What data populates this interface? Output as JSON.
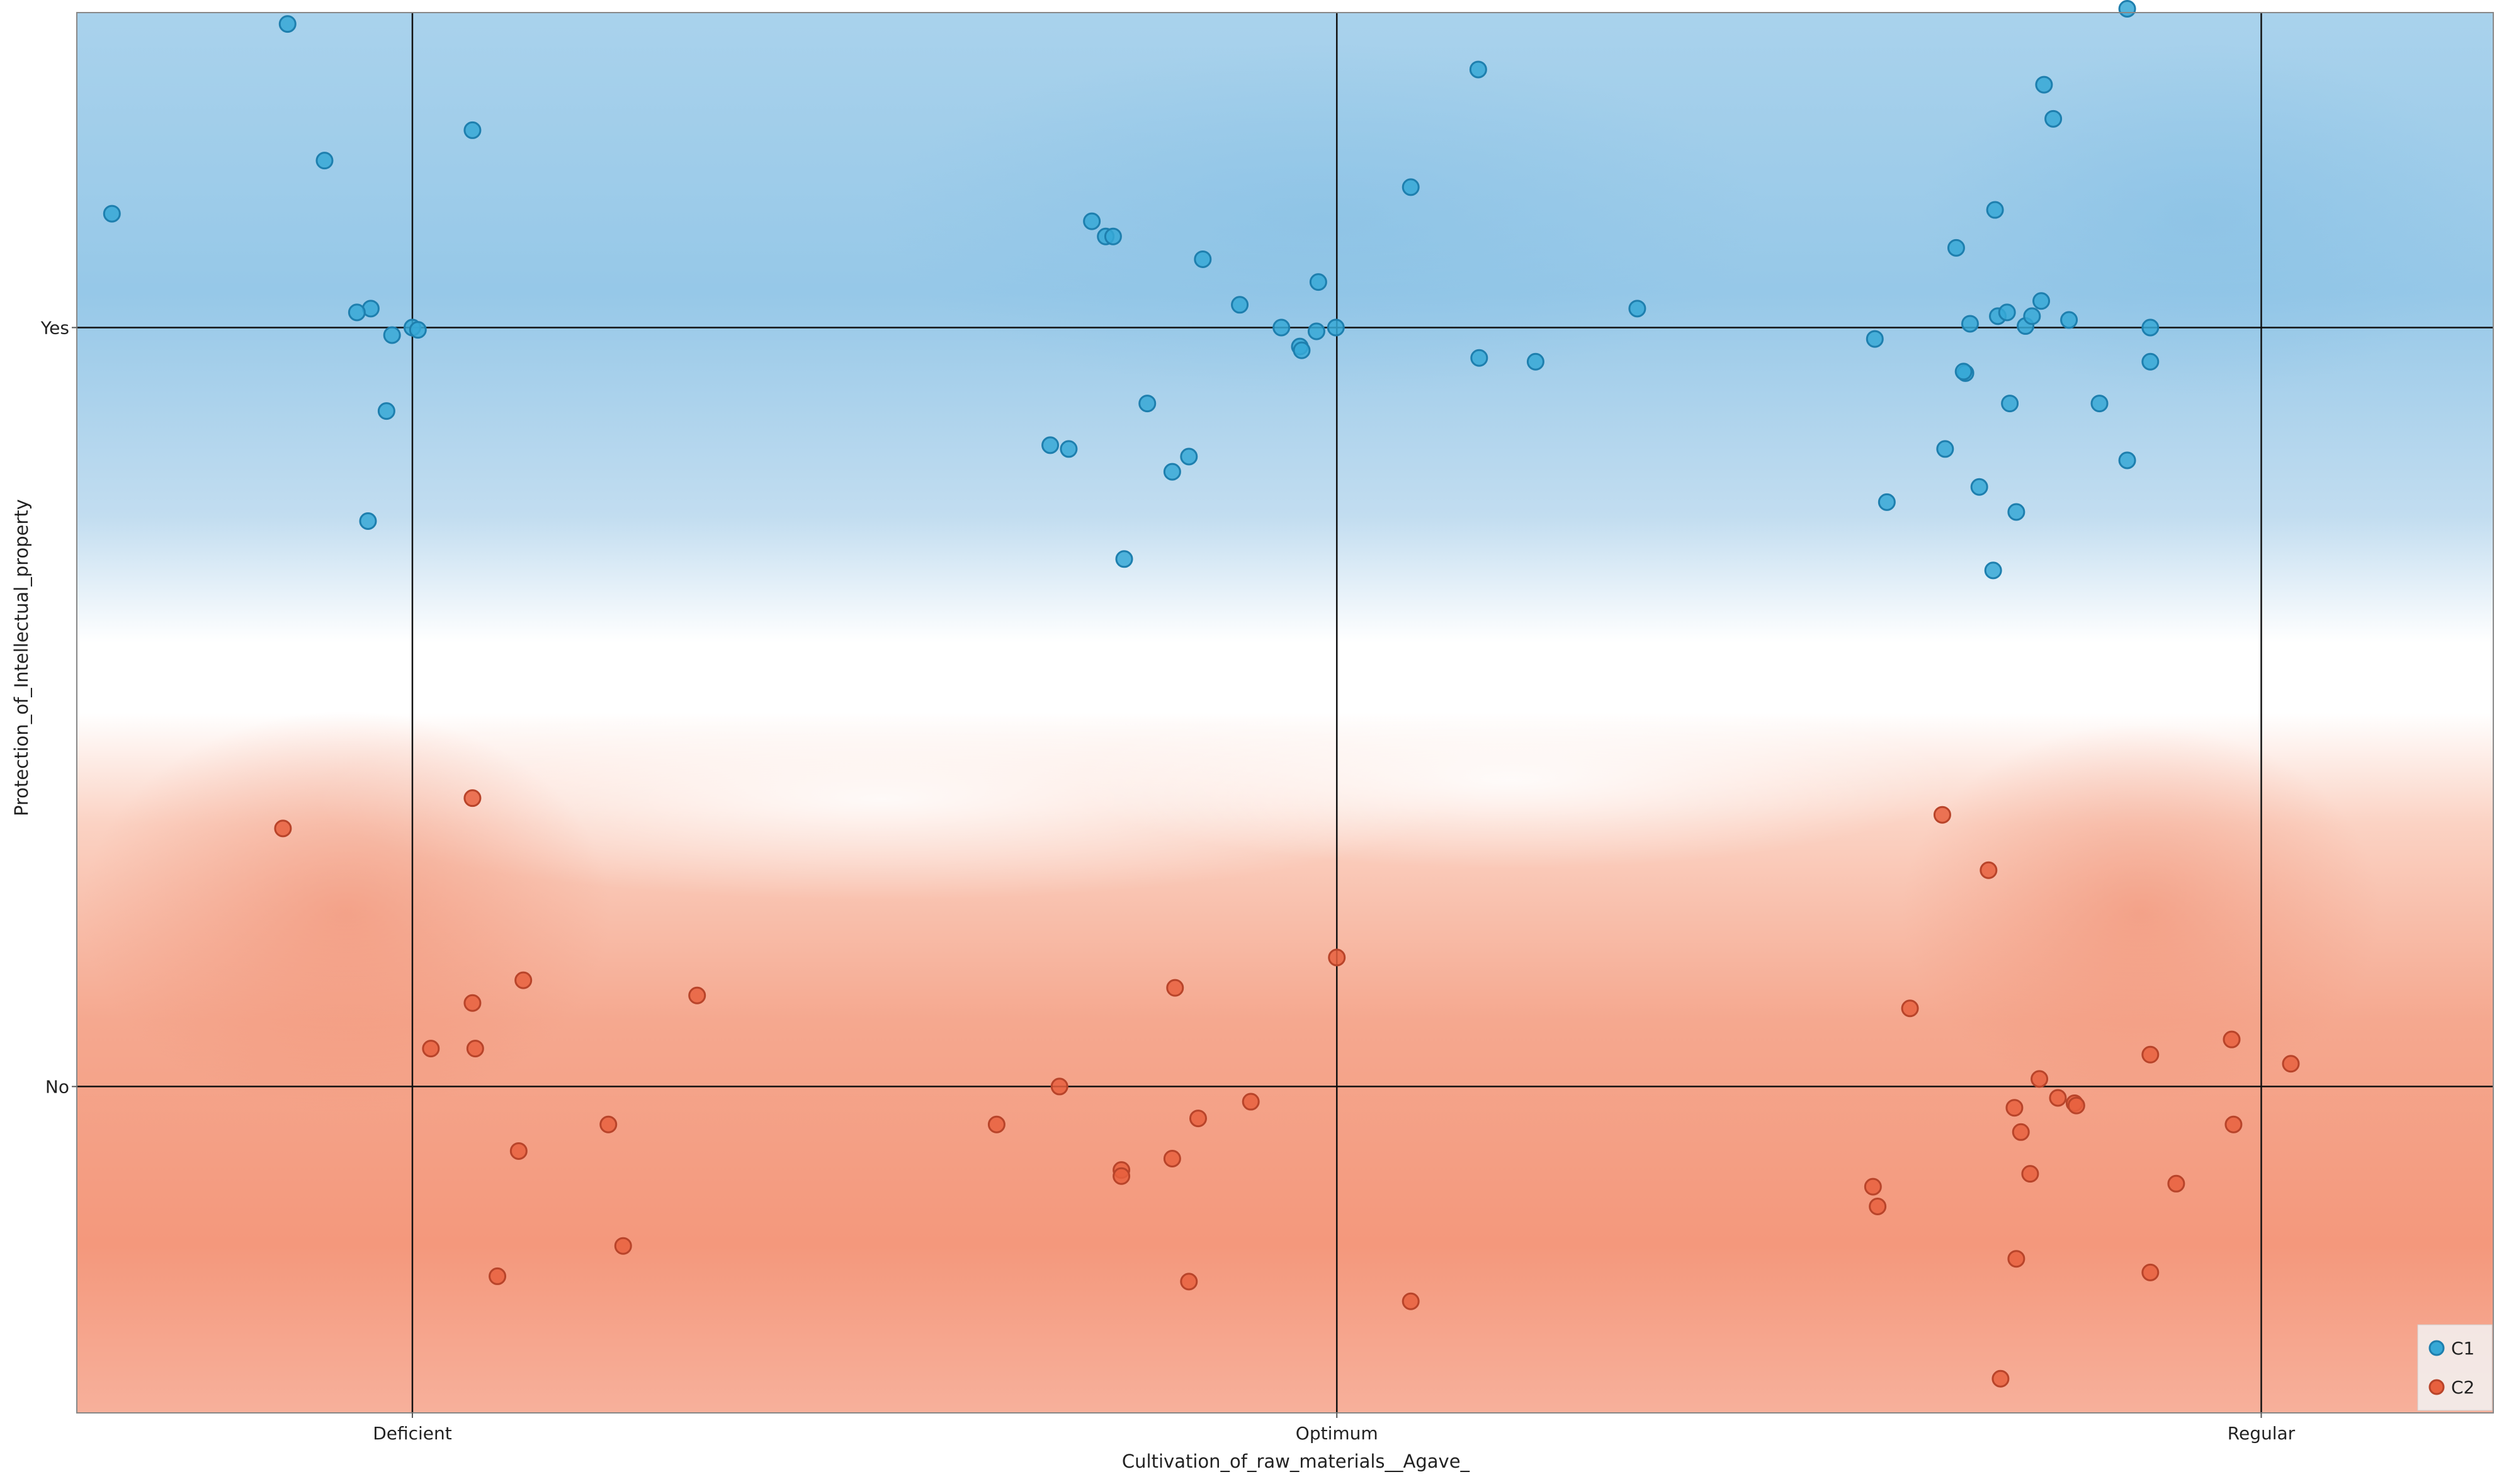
{
  "chart_data": {
    "type": "scatter",
    "title": "",
    "xlabel": "Cultivation_of_raw_materials__Agave_",
    "ylabel": "Protection_of_Intellectual_property",
    "x_categories": [
      "Deficient",
      "Optimum",
      "Regular"
    ],
    "y_categories": [
      "No",
      "Yes"
    ],
    "xlim": [
      -0.363,
      2.251
    ],
    "ylim": [
      -0.43,
      1.415
    ],
    "jitter_note": "categorical axes with jitter; values in category-index units (Deficient=0, Optimum=1, Regular=2; No=0, Yes=1)",
    "grid": true,
    "legend_position": "bottom-right",
    "background": "class probability map: blue (C1) top, red (C2) bottom",
    "colors": {
      "C1": "#36a8d6",
      "C2": "#e8603e",
      "C1_area": "#8fc5e6",
      "C2_area": "#f29379"
    },
    "series": [
      {
        "name": "C1",
        "points": [
          [
            -0.325,
            1.15
          ],
          [
            -0.135,
            1.4
          ],
          [
            -0.095,
            1.22
          ],
          [
            -0.045,
            1.025
          ],
          [
            -0.022,
            0.99
          ],
          [
            -0.028,
            0.89
          ],
          [
            -0.048,
            0.745
          ],
          [
            0.0,
            1.0
          ],
          [
            0.006,
            0.997
          ],
          [
            0.065,
            1.26
          ],
          [
            -0.06,
            1.02
          ],
          [
            0.735,
            1.14
          ],
          [
            0.75,
            1.12
          ],
          [
            0.758,
            1.12
          ],
          [
            0.855,
            1.09
          ],
          [
            0.795,
            0.9
          ],
          [
            0.84,
            0.83
          ],
          [
            0.822,
            0.81
          ],
          [
            0.69,
            0.845
          ],
          [
            0.71,
            0.84
          ],
          [
            0.77,
            0.695
          ],
          [
            0.895,
            1.03
          ],
          [
            0.94,
            1.0
          ],
          [
            0.96,
            0.975
          ],
          [
            0.962,
            0.97
          ],
          [
            0.978,
            0.995
          ],
          [
            0.98,
            1.06
          ],
          [
            0.999,
            1.0
          ],
          [
            1.08,
            1.185
          ],
          [
            1.153,
            1.34
          ],
          [
            1.154,
            0.96
          ],
          [
            1.215,
            0.955
          ],
          [
            1.325,
            1.025
          ],
          [
            1.582,
            0.985
          ],
          [
            1.595,
            0.77
          ],
          [
            1.658,
            0.84
          ],
          [
            1.67,
            1.105
          ],
          [
            1.68,
            0.94
          ],
          [
            1.678,
            0.942
          ],
          [
            1.685,
            1.005
          ],
          [
            1.695,
            0.79
          ],
          [
            1.715,
            1.015
          ],
          [
            1.71,
            0.68
          ],
          [
            1.712,
            1.155
          ],
          [
            1.725,
            1.02
          ],
          [
            1.728,
            0.9
          ],
          [
            1.735,
            0.757
          ],
          [
            1.745,
            1.002
          ],
          [
            1.752,
            1.015
          ],
          [
            1.762,
            1.035
          ],
          [
            1.765,
            1.32
          ],
          [
            1.775,
            1.275
          ],
          [
            1.792,
            1.01
          ],
          [
            1.825,
            0.9
          ],
          [
            1.855,
            1.42
          ],
          [
            1.855,
            0.825
          ],
          [
            1.88,
            1.0
          ],
          [
            1.88,
            0.955
          ]
        ]
      },
      {
        "name": "C2",
        "points": [
          [
            -0.14,
            0.34
          ],
          [
            0.065,
            0.38
          ],
          [
            0.12,
            0.14
          ],
          [
            0.065,
            0.11
          ],
          [
            0.02,
            0.05
          ],
          [
            0.068,
            0.05
          ],
          [
            0.115,
            -0.085
          ],
          [
            0.212,
            -0.05
          ],
          [
            0.228,
            -0.21
          ],
          [
            0.092,
            -0.25
          ],
          [
            0.308,
            0.12
          ],
          [
            0.632,
            -0.05
          ],
          [
            0.7,
            0.0
          ],
          [
            0.767,
            -0.11
          ],
          [
            0.767,
            -0.118
          ],
          [
            0.822,
            -0.095
          ],
          [
            0.825,
            0.13
          ],
          [
            0.85,
            -0.042
          ],
          [
            0.84,
            -0.257
          ],
          [
            0.907,
            -0.02
          ],
          [
            1.0,
            0.17
          ],
          [
            1.08,
            -0.283
          ],
          [
            1.58,
            -0.132
          ],
          [
            1.585,
            -0.158
          ],
          [
            1.62,
            0.103
          ],
          [
            1.655,
            0.358
          ],
          [
            1.705,
            0.285
          ],
          [
            1.718,
            -0.385
          ],
          [
            1.733,
            -0.028
          ],
          [
            1.735,
            -0.227
          ],
          [
            1.74,
            -0.06
          ],
          [
            1.75,
            -0.115
          ],
          [
            1.76,
            0.01
          ],
          [
            1.78,
            -0.015
          ],
          [
            1.798,
            -0.022
          ],
          [
            1.8,
            -0.025
          ],
          [
            1.88,
            0.042
          ],
          [
            1.88,
            -0.245
          ],
          [
            1.908,
            -0.128
          ],
          [
            1.968,
            0.062
          ],
          [
            1.97,
            -0.05
          ],
          [
            2.032,
            0.03
          ]
        ]
      }
    ]
  }
}
